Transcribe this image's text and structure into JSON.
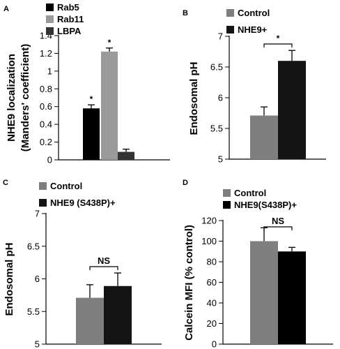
{
  "chart_data": [
    {
      "panel": "A",
      "type": "bar",
      "ylabel": "NHE9 localization",
      "ylabel2": "(Manders' coefficient)",
      "ylim": [
        0,
        1.4
      ],
      "yticks": [
        0,
        0.2,
        0.4,
        0.6,
        0.8,
        1,
        1.2,
        1.4
      ],
      "ytick_labels": [
        "0",
        "0.2",
        "0.4",
        "0.6",
        "0.8",
        "1",
        "1.2",
        "1.4"
      ],
      "grid": false,
      "legend_position": "top-left",
      "series": [
        {
          "name": "Rab5",
          "color": "#000000",
          "value": 0.58,
          "error": 0.04,
          "annotation": "*"
        },
        {
          "name": "Rab11",
          "color": "#9a9a9a",
          "value": 1.22,
          "error": 0.04,
          "annotation": "*"
        },
        {
          "name": "LBPA",
          "color": "#333333",
          "value": 0.09,
          "error": 0.03,
          "annotation": ""
        }
      ]
    },
    {
      "panel": "B",
      "type": "bar",
      "ylabel": "Endosomal pH",
      "ylim": [
        5,
        7
      ],
      "yticks": [
        5,
        5.5,
        6,
        6.5,
        7
      ],
      "ytick_labels": [
        "5",
        "5.5",
        "6",
        "6.5",
        "7"
      ],
      "grid": false,
      "legend_position": "top-left",
      "series": [
        {
          "name": "Control",
          "color": "#7f7f7f",
          "value": 5.71,
          "error": 0.14
        },
        {
          "name": "NHE9+",
          "color": "#141414",
          "value": 6.6,
          "error": 0.17
        }
      ],
      "bracket_label": "*"
    },
    {
      "panel": "C",
      "type": "bar",
      "ylabel": "Endosomal pH",
      "ylim": [
        5,
        7
      ],
      "yticks": [
        5,
        5.5,
        6,
        6.5,
        7
      ],
      "ytick_labels": [
        "5",
        "5.5",
        "6",
        "6.5",
        "7"
      ],
      "grid": false,
      "legend_position": "top-left",
      "series": [
        {
          "name": "Control",
          "color": "#7f7f7f",
          "value": 5.71,
          "error": 0.2
        },
        {
          "name": "NHE9 (S438P)+",
          "color": "#141414",
          "value": 5.89,
          "error": 0.2
        }
      ],
      "bracket_label": "NS"
    },
    {
      "panel": "D",
      "type": "bar",
      "ylabel": "Calcein MFI (% control)",
      "ylim": [
        0,
        120
      ],
      "yticks": [
        0,
        20,
        40,
        60,
        80,
        100,
        120
      ],
      "ytick_labels": [
        "0",
        "20",
        "40",
        "60",
        "80",
        "100",
        "120"
      ],
      "grid": false,
      "legend_position": "top-left",
      "series": [
        {
          "name": "Control",
          "color": "#7f7f7f",
          "value": 100,
          "error": 13
        },
        {
          "name": "NHE9(S438P)+",
          "color": "#000000",
          "value": 90,
          "error": 4
        }
      ],
      "bracket_label": "NS"
    }
  ]
}
